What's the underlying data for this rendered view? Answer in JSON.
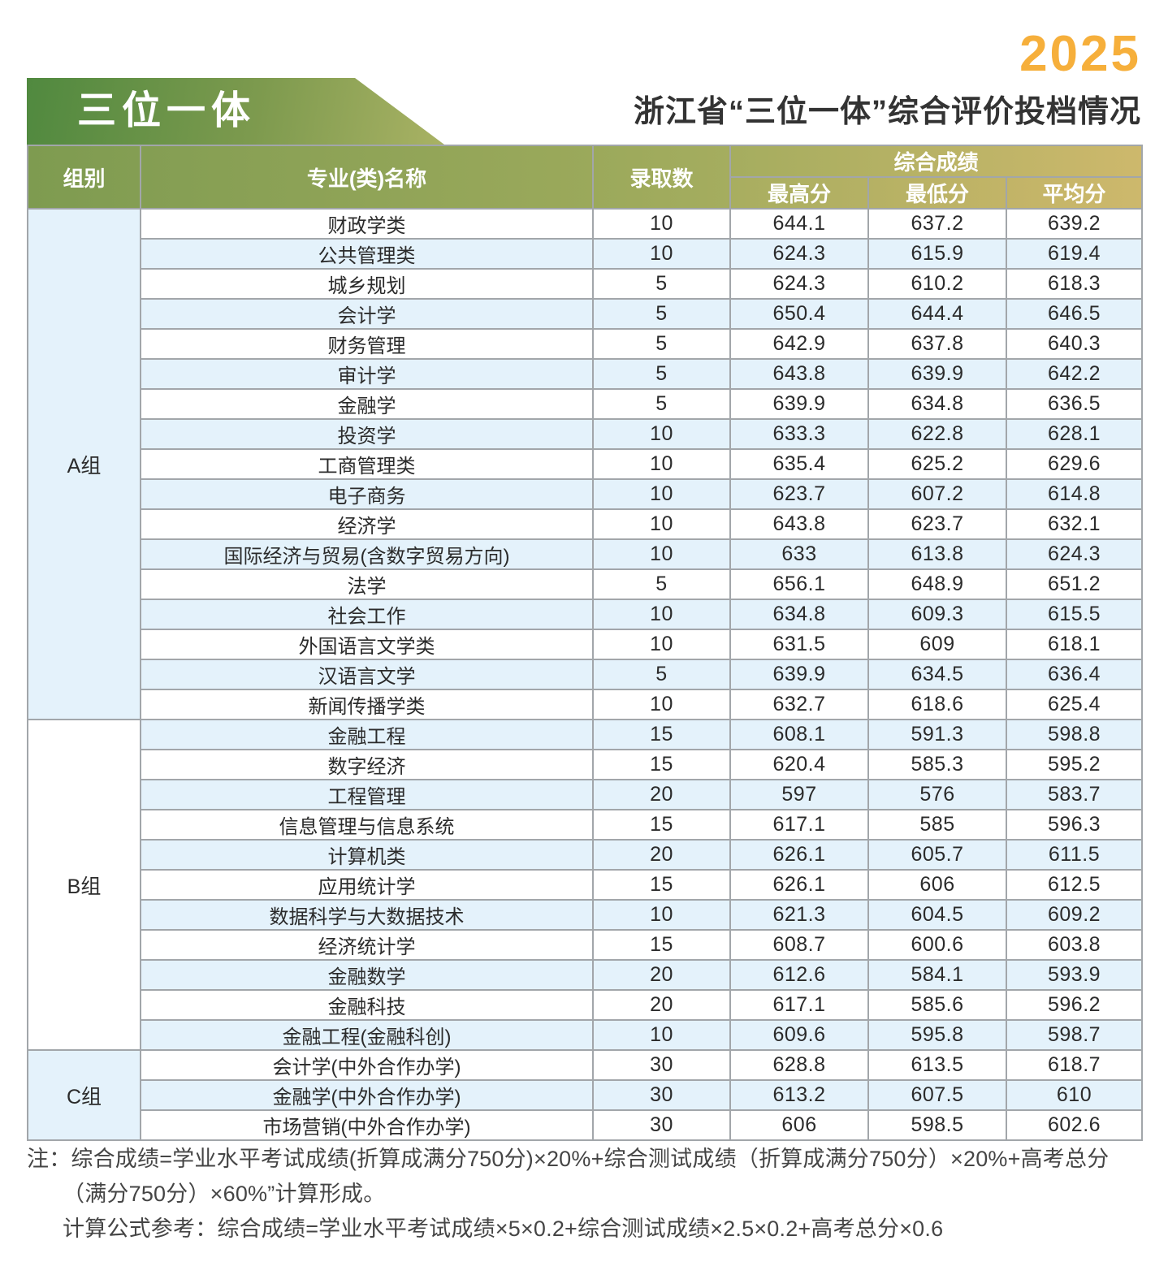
{
  "header": {
    "year": "2025",
    "banner": "三位一体",
    "title": "浙江省“三位一体”综合评价投档情况"
  },
  "table": {
    "headers": {
      "group": "组别",
      "major": "专业(类)名称",
      "count": "录取数",
      "composite": "综合成绩",
      "max": "最高分",
      "min": "最低分",
      "avg": "平均分"
    },
    "groups": [
      {
        "name": "A组",
        "rows": [
          {
            "major": "财政学类",
            "count": "10",
            "max": "644.1",
            "min": "637.2",
            "avg": "639.2"
          },
          {
            "major": "公共管理类",
            "count": "10",
            "max": "624.3",
            "min": "615.9",
            "avg": "619.4"
          },
          {
            "major": "城乡规划",
            "count": "5",
            "max": "624.3",
            "min": "610.2",
            "avg": "618.3"
          },
          {
            "major": "会计学",
            "count": "5",
            "max": "650.4",
            "min": "644.4",
            "avg": "646.5"
          },
          {
            "major": "财务管理",
            "count": "5",
            "max": "642.9",
            "min": "637.8",
            "avg": "640.3"
          },
          {
            "major": "审计学",
            "count": "5",
            "max": "643.8",
            "min": "639.9",
            "avg": "642.2"
          },
          {
            "major": "金融学",
            "count": "5",
            "max": "639.9",
            "min": "634.8",
            "avg": "636.5"
          },
          {
            "major": "投资学",
            "count": "10",
            "max": "633.3",
            "min": "622.8",
            "avg": "628.1"
          },
          {
            "major": "工商管理类",
            "count": "10",
            "max": "635.4",
            "min": "625.2",
            "avg": "629.6"
          },
          {
            "major": "电子商务",
            "count": "10",
            "max": "623.7",
            "min": "607.2",
            "avg": "614.8"
          },
          {
            "major": "经济学",
            "count": "10",
            "max": "643.8",
            "min": "623.7",
            "avg": "632.1"
          },
          {
            "major": "国际经济与贸易(含数字贸易方向)",
            "count": "10",
            "max": "633",
            "min": "613.8",
            "avg": "624.3"
          },
          {
            "major": "法学",
            "count": "5",
            "max": "656.1",
            "min": "648.9",
            "avg": "651.2"
          },
          {
            "major": "社会工作",
            "count": "10",
            "max": "634.8",
            "min": "609.3",
            "avg": "615.5"
          },
          {
            "major": "外国语言文学类",
            "count": "10",
            "max": "631.5",
            "min": "609",
            "avg": "618.1"
          },
          {
            "major": "汉语言文学",
            "count": "5",
            "max": "639.9",
            "min": "634.5",
            "avg": "636.4"
          },
          {
            "major": "新闻传播学类",
            "count": "10",
            "max": "632.7",
            "min": "618.6",
            "avg": "625.4"
          }
        ]
      },
      {
        "name": "B组",
        "rows": [
          {
            "major": "金融工程",
            "count": "15",
            "max": "608.1",
            "min": "591.3",
            "avg": "598.8"
          },
          {
            "major": "数字经济",
            "count": "15",
            "max": "620.4",
            "min": "585.3",
            "avg": "595.2"
          },
          {
            "major": "工程管理",
            "count": "20",
            "max": "597",
            "min": "576",
            "avg": "583.7"
          },
          {
            "major": "信息管理与信息系统",
            "count": "15",
            "max": "617.1",
            "min": "585",
            "avg": "596.3"
          },
          {
            "major": "计算机类",
            "count": "20",
            "max": "626.1",
            "min": "605.7",
            "avg": "611.5"
          },
          {
            "major": "应用统计学",
            "count": "15",
            "max": "626.1",
            "min": "606",
            "avg": "612.5"
          },
          {
            "major": "数据科学与大数据技术",
            "count": "10",
            "max": "621.3",
            "min": "604.5",
            "avg": "609.2"
          },
          {
            "major": "经济统计学",
            "count": "15",
            "max": "608.7",
            "min": "600.6",
            "avg": "603.8"
          },
          {
            "major": "金融数学",
            "count": "20",
            "max": "612.6",
            "min": "584.1",
            "avg": "593.9"
          },
          {
            "major": "金融科技",
            "count": "20",
            "max": "617.1",
            "min": "585.6",
            "avg": "596.2"
          },
          {
            "major": "金融工程(金融科创)",
            "count": "10",
            "max": "609.6",
            "min": "595.8",
            "avg": "598.7"
          }
        ]
      },
      {
        "name": "C组",
        "rows": [
          {
            "major": "会计学(中外合作办学)",
            "count": "30",
            "max": "628.8",
            "min": "613.5",
            "avg": "618.7"
          },
          {
            "major": "金融学(中外合作办学)",
            "count": "30",
            "max": "613.2",
            "min": "607.5",
            "avg": "610"
          },
          {
            "major": "市场营销(中外合作办学)",
            "count": "30",
            "max": "606",
            "min": "598.5",
            "avg": "602.6"
          }
        ]
      }
    ]
  },
  "notes": [
    "注：综合成绩=学业水平考试成绩(折算成满分750分)×20%+综合测试成绩（折算成满分750分）×20%+高考总分（满分750分）×60%”计算形成。",
    "计算公式参考：综合成绩=学业水平考试成绩×5×0.2+综合测试成绩×2.5×0.2+高考总分×0.6"
  ],
  "colors": {
    "year_accent": "#F6AF3B",
    "banner_green_dark": "#50893F",
    "banner_green_light": "#A9B264",
    "header_green": "#7E9B50",
    "header_gold": "#CDB86C",
    "row_alt_blue": "#E4F2FB",
    "border_gray": "#A2A6AA",
    "title_text": "#333333",
    "header_text": "#FFFFFF"
  }
}
